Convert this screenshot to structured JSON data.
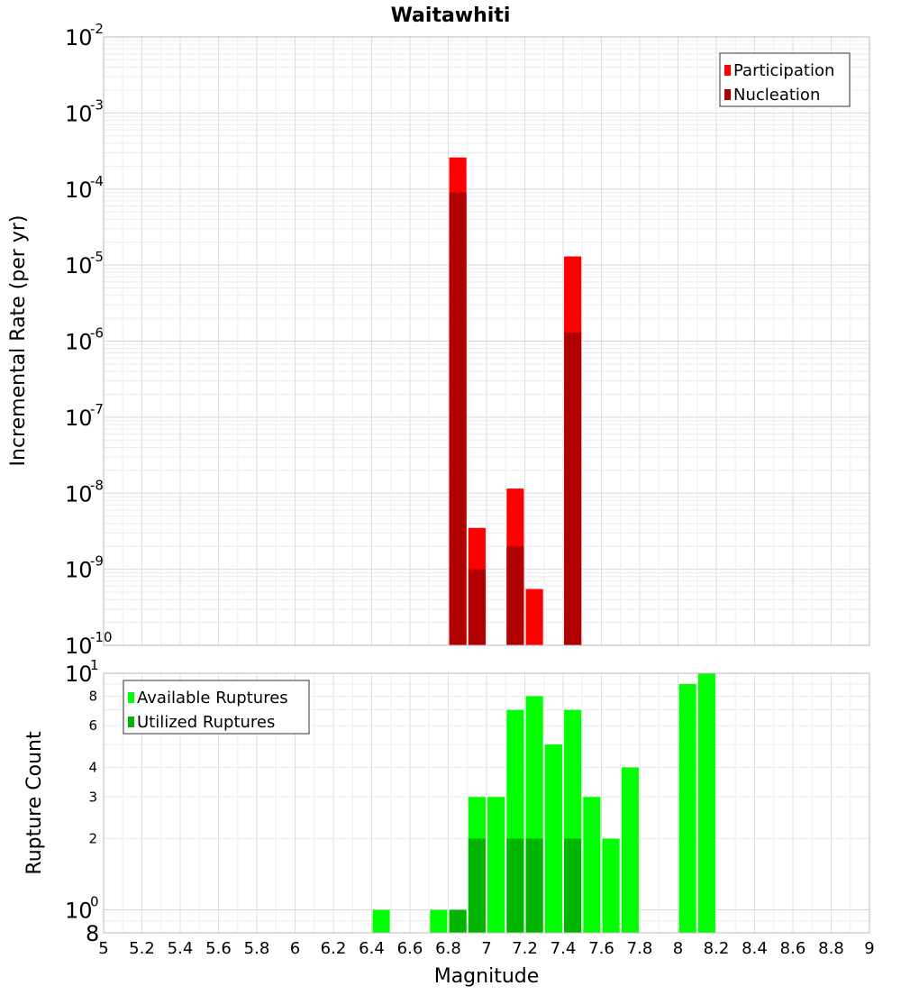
{
  "chart_data": [
    {
      "type": "bar",
      "title": "Waitawhiti",
      "ylabel": "Incremental Rate (per yr)",
      "xlabel": "",
      "y_scale": "log",
      "ylim": [
        1e-10,
        0.01
      ],
      "xlim": [
        5,
        9
      ],
      "grid": true,
      "legend_position": "top-right",
      "y_ticks": [
        {
          "value": 1e-10,
          "base": "10",
          "exp": "-10"
        },
        {
          "value": 1e-09,
          "base": "10",
          "exp": "-9"
        },
        {
          "value": 1e-08,
          "base": "10",
          "exp": "-8"
        },
        {
          "value": 1e-07,
          "base": "10",
          "exp": "-7"
        },
        {
          "value": 1e-06,
          "base": "10",
          "exp": "-6"
        },
        {
          "value": 1e-05,
          "base": "10",
          "exp": "-5"
        },
        {
          "value": 0.0001,
          "base": "10",
          "exp": "-4"
        },
        {
          "value": 0.001,
          "base": "10",
          "exp": "-3"
        },
        {
          "value": 0.01,
          "base": "10",
          "exp": "-2"
        }
      ],
      "series": [
        {
          "name": "Participation",
          "color": "#ff0000",
          "points": [
            {
              "x": 6.85,
              "y": 0.00026
            },
            {
              "x": 6.95,
              "y": 3.5e-09
            },
            {
              "x": 7.15,
              "y": 1.15e-08
            },
            {
              "x": 7.25,
              "y": 5.5e-10
            },
            {
              "x": 7.45,
              "y": 1.3e-05
            }
          ]
        },
        {
          "name": "Nucleation",
          "color": "#b00000",
          "points": [
            {
              "x": 6.85,
              "y": 9e-05
            },
            {
              "x": 6.95,
              "y": 1e-09
            },
            {
              "x": 7.15,
              "y": 2e-09
            },
            {
              "x": 7.45,
              "y": 1.3e-06
            }
          ]
        }
      ]
    },
    {
      "type": "bar",
      "title": "",
      "ylabel": "Rupture Count",
      "xlabel": "Magnitude",
      "y_scale": "log",
      "ylim": [
        0.8,
        10
      ],
      "xlim": [
        5,
        9
      ],
      "grid": true,
      "legend_position": "top-left",
      "x_ticks": [
        "5",
        "5.2",
        "5.4",
        "5.6",
        "5.8",
        "6",
        "6.2",
        "6.4",
        "6.6",
        "6.8",
        "7",
        "7.2",
        "7.4",
        "7.6",
        "7.8",
        "8",
        "8.2",
        "8.4",
        "8.6",
        "8.8",
        "9"
      ],
      "y_decade_ticks": [
        {
          "value": 1,
          "base": "10",
          "exp": "0"
        },
        {
          "value": 10,
          "base": "10",
          "exp": "1"
        }
      ],
      "y_minor_ticks": [
        {
          "value": 0.8,
          "label": "8"
        },
        {
          "value": 2,
          "label": "2"
        },
        {
          "value": 3,
          "label": "3"
        },
        {
          "value": 4,
          "label": "4"
        },
        {
          "value": 6,
          "label": "6"
        },
        {
          "value": 8,
          "label": "8"
        }
      ],
      "series": [
        {
          "name": "Available Ruptures",
          "color": "#00ff00",
          "points": [
            {
              "x": 6.45,
              "y": 1
            },
            {
              "x": 6.75,
              "y": 1
            },
            {
              "x": 6.85,
              "y": 1
            },
            {
              "x": 6.95,
              "y": 3
            },
            {
              "x": 7.05,
              "y": 3
            },
            {
              "x": 7.15,
              "y": 7
            },
            {
              "x": 7.25,
              "y": 8
            },
            {
              "x": 7.35,
              "y": 5
            },
            {
              "x": 7.45,
              "y": 7
            },
            {
              "x": 7.55,
              "y": 3
            },
            {
              "x": 7.65,
              "y": 2
            },
            {
              "x": 7.75,
              "y": 4
            },
            {
              "x": 8.05,
              "y": 9
            },
            {
              "x": 8.15,
              "y": 10
            }
          ]
        },
        {
          "name": "Utilized Ruptures",
          "color": "#00b400",
          "points": [
            {
              "x": 6.85,
              "y": 1
            },
            {
              "x": 6.95,
              "y": 2
            },
            {
              "x": 7.15,
              "y": 2
            },
            {
              "x": 7.25,
              "y": 2
            },
            {
              "x": 7.45,
              "y": 2
            }
          ]
        }
      ]
    }
  ]
}
